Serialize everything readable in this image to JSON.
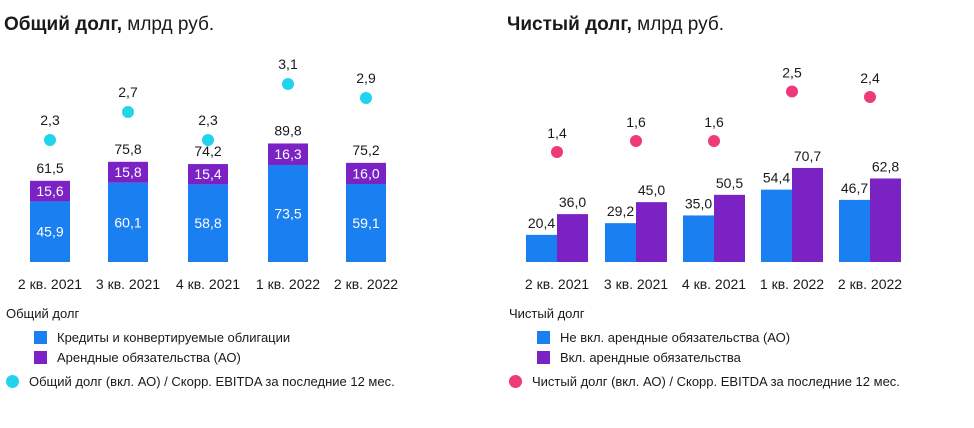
{
  "colors": {
    "blue": "#1a7ff0",
    "purple": "#7a22c4",
    "cyan": "#22d3ee",
    "pink": "#ee3a7a"
  },
  "chart_data": [
    {
      "type": "bar",
      "stacked": true,
      "title_bold": "Общий долг,",
      "title_rest": " млрд руб.",
      "categories": [
        "2 кв. 2021",
        "3 кв. 2021",
        "4 кв. 2021",
        "1 кв. 2022",
        "2 кв. 2022"
      ],
      "series": [
        {
          "name": "Кредиты и конвертируемые облигации",
          "values": [
            45.9,
            60.1,
            58.8,
            73.5,
            59.1
          ],
          "labels": [
            "45,9",
            "60,1",
            "58,8",
            "73,5",
            "59,1"
          ],
          "color": "#1a7ff0"
        },
        {
          "name": "Арендные обязательства (АО)",
          "values": [
            15.6,
            15.8,
            15.4,
            16.3,
            16.0
          ],
          "labels": [
            "15,6",
            "15,8",
            "15,4",
            "16,3",
            "16,0"
          ],
          "color": "#7a22c4"
        }
      ],
      "totals": [
        61.5,
        75.8,
        74.2,
        89.8,
        75.2
      ],
      "total_labels": [
        "61,5",
        "75,8",
        "74,2",
        "89,8",
        "75,2"
      ],
      "ratio": {
        "name": "Общий долг (вкл. АО) / Скорр. EBITDA за последние 12 мес.",
        "values": [
          2.3,
          2.7,
          2.3,
          3.1,
          2.9
        ],
        "labels": [
          "2,3",
          "2,7",
          "2,3",
          "3,1",
          "2,9"
        ],
        "color": "#22d3ee"
      },
      "legend_title": "Общий долг"
    },
    {
      "type": "bar",
      "stacked": false,
      "title_bold": "Чистый долг,",
      "title_rest": " млрд руб.",
      "categories": [
        "2 кв. 2021",
        "3 кв. 2021",
        "4 кв. 2021",
        "1 кв. 2022",
        "2 кв. 2022"
      ],
      "series": [
        {
          "name": "Не вкл. арендные обязательства (АО)",
          "values": [
            20.4,
            29.2,
            35.0,
            54.4,
            46.7
          ],
          "labels": [
            "20,4",
            "29,2",
            "35,0",
            "54,4",
            "46,7"
          ],
          "color": "#1a7ff0"
        },
        {
          "name": "Вкл. арендные обязательства",
          "values": [
            36.0,
            45.0,
            50.5,
            70.7,
            62.8
          ],
          "labels": [
            "36,0",
            "45,0",
            "50,5",
            "70,7",
            "62,8"
          ],
          "color": "#7a22c4"
        }
      ],
      "ratio": {
        "name": "Чистый долг (вкл. АО) / Скорр. EBITDA за последние 12 мес.",
        "values": [
          1.4,
          1.6,
          1.6,
          2.5,
          2.4
        ],
        "labels": [
          "1,4",
          "1,6",
          "1,6",
          "2,5",
          "2,4"
        ],
        "color": "#ee3a7a"
      },
      "legend_title": "Чистый долг"
    }
  ]
}
